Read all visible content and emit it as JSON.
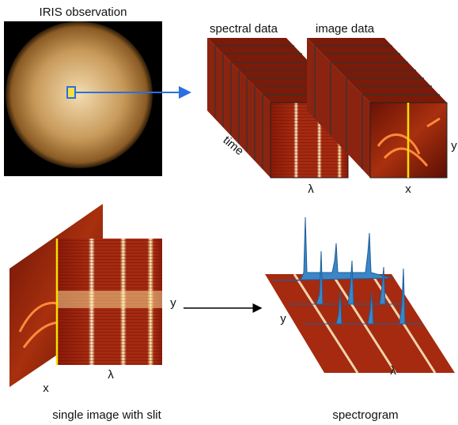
{
  "top": {
    "observation_title": "IRIS observation",
    "spectral_title": "spectral data",
    "image_title": "image data",
    "time_label": "time",
    "spectral_lambda_label": "λ",
    "image_x_label": "x",
    "image_y_label": "y"
  },
  "bottom_left": {
    "caption": "single image with slit",
    "x_label": "x",
    "lambda_label": "λ",
    "y_label": "y"
  },
  "bottom_right": {
    "caption": "spectrogram",
    "y_label": "y",
    "lambda_label": "λ"
  }
}
